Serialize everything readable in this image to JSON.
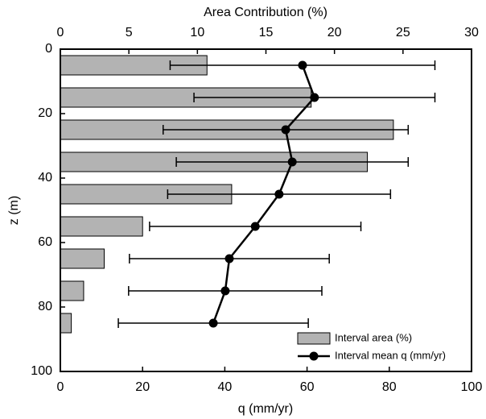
{
  "chart_data": {
    "type": "bar-line",
    "xlabel": "q (mm/yr)",
    "x2label": "Area Contribution (%)",
    "ylabel": "z (m)",
    "y": [
      5,
      15,
      25,
      35,
      45,
      55,
      65,
      75,
      85
    ],
    "series": [
      {
        "name": "Interval area (%)",
        "type": "bar",
        "axis": "x2",
        "color": "#b3b3b3",
        "values": [
          10.7,
          18.3,
          24.3,
          22.4,
          12.5,
          6.0,
          3.2,
          1.7,
          0.8
        ]
      },
      {
        "name": "Interval mean q (mm/yr)",
        "type": "line",
        "axis": "x",
        "color": "#000000",
        "values": [
          58.9,
          61.8,
          54.8,
          56.4,
          53.2,
          47.4,
          41.1,
          40.1,
          37.2
        ],
        "errors": [
          32.2,
          29.3,
          29.8,
          28.2,
          27.1,
          25.7,
          24.3,
          23.5,
          23.1
        ]
      }
    ],
    "xlim": [
      0,
      100
    ],
    "xticks": [
      0,
      20,
      40,
      60,
      80,
      100
    ],
    "x2lim": [
      0,
      30
    ],
    "x2ticks": [
      0,
      5,
      10,
      15,
      20,
      25,
      30
    ],
    "ylim": [
      0,
      100
    ],
    "yticks": [
      0,
      20,
      40,
      60,
      80,
      100
    ],
    "y_inverted": true,
    "legend": "lower right"
  }
}
